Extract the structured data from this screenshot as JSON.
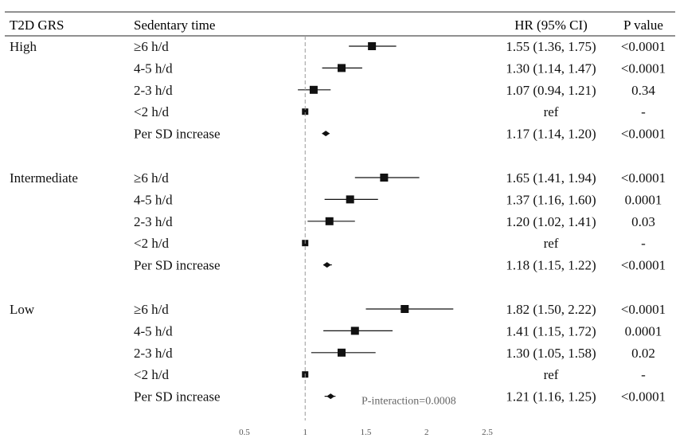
{
  "chart_data": {
    "type": "forest",
    "headers": {
      "group": "T2D GRS",
      "exposure": "Sedentary time",
      "hr": "HR (95% CI)",
      "p": "P value"
    },
    "groups": [
      {
        "name": "High",
        "rows": [
          {
            "label": "≥6 h/d",
            "hr": 1.55,
            "lo": 1.36,
            "hi": 1.75,
            "hr_text": "1.55 (1.36, 1.75)",
            "p": "<0.0001",
            "marker": "square"
          },
          {
            "label": "4-5 h/d",
            "hr": 1.3,
            "lo": 1.14,
            "hi": 1.47,
            "hr_text": "1.30 (1.14, 1.47)",
            "p": "<0.0001",
            "marker": "square"
          },
          {
            "label": "2-3 h/d",
            "hr": 1.07,
            "lo": 0.94,
            "hi": 1.21,
            "hr_text": "1.07 (0.94, 1.21)",
            "p": "0.34",
            "marker": "square"
          },
          {
            "label": "<2 h/d",
            "hr": 1.0,
            "lo": 1.0,
            "hi": 1.0,
            "hr_text": "ref",
            "p": "-",
            "marker": "square-small"
          },
          {
            "label": "Per SD increase",
            "hr": 1.17,
            "lo": 1.14,
            "hi": 1.2,
            "hr_text": "1.17 (1.14, 1.20)",
            "p": "<0.0001",
            "marker": "diamond"
          }
        ]
      },
      {
        "name": "Intermediate",
        "rows": [
          {
            "label": "≥6 h/d",
            "hr": 1.65,
            "lo": 1.41,
            "hi": 1.94,
            "hr_text": "1.65 (1.41, 1.94)",
            "p": "<0.0001",
            "marker": "square"
          },
          {
            "label": "4-5 h/d",
            "hr": 1.37,
            "lo": 1.16,
            "hi": 1.6,
            "hr_text": "1.37 (1.16, 1.60)",
            "p": "0.0001",
            "marker": "square"
          },
          {
            "label": "2-3 h/d",
            "hr": 1.2,
            "lo": 1.02,
            "hi": 1.41,
            "hr_text": "1.20 (1.02, 1.41)",
            "p": "0.03",
            "marker": "square"
          },
          {
            "label": "<2 h/d",
            "hr": 1.0,
            "lo": 1.0,
            "hi": 1.0,
            "hr_text": "ref",
            "p": "-",
            "marker": "square-small"
          },
          {
            "label": "Per SD increase",
            "hr": 1.18,
            "lo": 1.15,
            "hi": 1.22,
            "hr_text": "1.18 (1.15, 1.22)",
            "p": "<0.0001",
            "marker": "diamond"
          }
        ]
      },
      {
        "name": "Low",
        "rows": [
          {
            "label": "≥6 h/d",
            "hr": 1.82,
            "lo": 1.5,
            "hi": 2.22,
            "hr_text": "1.82 (1.50, 2.22)",
            "p": "<0.0001",
            "marker": "square"
          },
          {
            "label": "4-5 h/d",
            "hr": 1.41,
            "lo": 1.15,
            "hi": 1.72,
            "hr_text": "1.41 (1.15, 1.72)",
            "p": "0.0001",
            "marker": "square"
          },
          {
            "label": "2-3 h/d",
            "hr": 1.3,
            "lo": 1.05,
            "hi": 1.58,
            "hr_text": "1.30 (1.05, 1.58)",
            "p": "0.02",
            "marker": "square"
          },
          {
            "label": "<2 h/d",
            "hr": 1.0,
            "lo": 1.0,
            "hi": 1.0,
            "hr_text": "ref",
            "p": "-",
            "marker": "square-small"
          },
          {
            "label": "Per SD increase",
            "hr": 1.21,
            "lo": 1.16,
            "hi": 1.25,
            "hr_text": "1.21 (1.16, 1.25)",
            "p": "<0.0001",
            "marker": "diamond"
          }
        ]
      }
    ],
    "xlim": [
      0.5,
      2.5
    ],
    "xticks": [
      0.5,
      1,
      1.5,
      2,
      2.5
    ],
    "xtick_labels": [
      "0.5",
      "1",
      "1.5",
      "2",
      "2.5"
    ],
    "reference_line": 1,
    "annotation": "P-interaction=0.0008",
    "colors": {
      "marker": "#111111",
      "reference_line": "#999999",
      "text": "#111111",
      "tick": "#555555",
      "annotation": "#666666"
    }
  }
}
